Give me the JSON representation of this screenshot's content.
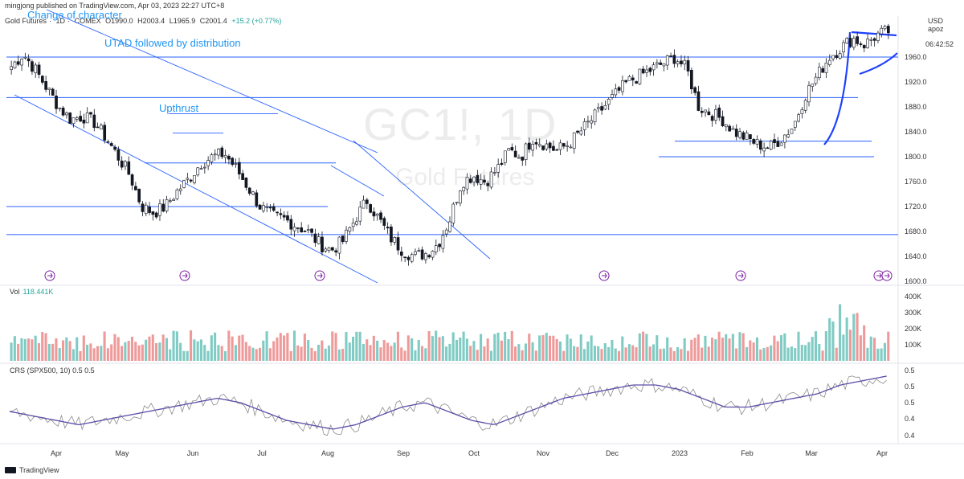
{
  "header": {
    "published": "mingjong published on TradingView.com, Apr 03, 2023 22:27 UTC+8",
    "symbol_name": "Gold Futures",
    "interval": "1D",
    "exchange": "COMEX",
    "ohlc": [
      "O1990.0",
      "H2003.4",
      "L1965.9",
      "C2001.4",
      "+15.2 (+0.77%)"
    ]
  },
  "price_scale": {
    "currency": "USD",
    "user": "apoz",
    "countdown": "06:42:52",
    "ticks": [
      "1960.0",
      "1920.0",
      "1880.0",
      "1840.0",
      "1800.0",
      "1760.0",
      "1720.0",
      "1680.0",
      "1640.0",
      "1600.0"
    ]
  },
  "watermark": {
    "ticker": "GC1!, 1D",
    "name": "Gold Futures"
  },
  "annotations": {
    "change_of_character": "Change of character",
    "utad": "UTAD followed by distribution",
    "upthrust": "Upthrust"
  },
  "volume": {
    "label": "Vol",
    "value": "118.441K",
    "ticks": [
      "400K",
      "300K",
      "200K",
      "100K"
    ]
  },
  "crs": {
    "label": "CRS (SPX500, 10)",
    "params": "0.5  0.5",
    "ticks": [
      "0.5",
      "0.5",
      "0.5",
      "0.4",
      "0.4"
    ]
  },
  "x_axis": [
    "Apr",
    "May",
    "Jun",
    "Jul",
    "Aug",
    "Sep",
    "Oct",
    "Nov",
    "Dec",
    "2023",
    "Feb",
    "Mar",
    "Apr"
  ],
  "footer": {
    "brand": "TradingView"
  },
  "colors": {
    "up": "#26a69a",
    "down": "#ef5350",
    "line": "#2962ff",
    "crs": "#8c8c8c",
    "ma": "#5b4da8",
    "annotation": "#2196f3"
  },
  "chart_data": [
    {
      "type": "candlestick",
      "title": "GC1!, 1D",
      "subtitle": "Gold Futures",
      "x": [
        "Apr",
        "May",
        "Jun",
        "Jul",
        "Aug",
        "Sep",
        "Oct",
        "Nov",
        "Dec",
        "2023",
        "Feb",
        "Mar",
        "Apr"
      ],
      "close_path": [
        1945,
        1965,
        1940,
        1910,
        1880,
        1860,
        1865,
        1855,
        1830,
        1800,
        1770,
        1720,
        1710,
        1720,
        1745,
        1765,
        1790,
        1800,
        1805,
        1780,
        1750,
        1720,
        1705,
        1700,
        1690,
        1680,
        1660,
        1650,
        1665,
        1700,
        1730,
        1700,
        1670,
        1650,
        1640,
        1645,
        1660,
        1700,
        1760,
        1770,
        1760,
        1780,
        1810,
        1800,
        1830,
        1820,
        1810,
        1820,
        1840,
        1860,
        1880,
        1900,
        1920,
        1930,
        1940,
        1950,
        1960,
        1940,
        1880,
        1870,
        1860,
        1840,
        1830,
        1820,
        1815,
        1830,
        1850,
        1900,
        1930,
        1960,
        1975,
        1990,
        1980,
        1995,
        2001.4
      ],
      "ylim": [
        1600,
        1980
      ],
      "levels": [
        1960,
        1895,
        1865,
        1790,
        1720,
        1675,
        1825,
        1800
      ],
      "ylabel": "USD"
    },
    {
      "type": "bar",
      "title": "Vol",
      "ylim": [
        0,
        450000
      ],
      "last": 118441
    },
    {
      "type": "line",
      "title": "CRS (SPX500, 10)",
      "series": [
        {
          "name": "",
          "values": [
            0.44,
            0.43,
            0.42,
            0.41,
            0.42,
            0.43,
            0.44,
            0.45,
            0.46,
            0.47,
            0.46,
            0.44,
            0.42,
            0.41,
            0.4,
            0.41,
            0.43,
            0.45,
            0.46,
            0.44,
            0.42,
            0.41,
            0.43,
            0.45,
            0.47,
            0.48,
            0.49,
            0.5,
            0.5,
            0.49,
            0.47,
            0.45,
            0.45,
            0.46,
            0.47,
            0.48,
            0.5,
            0.51,
            0.52
          ]
        }
      ]
    }
  ]
}
